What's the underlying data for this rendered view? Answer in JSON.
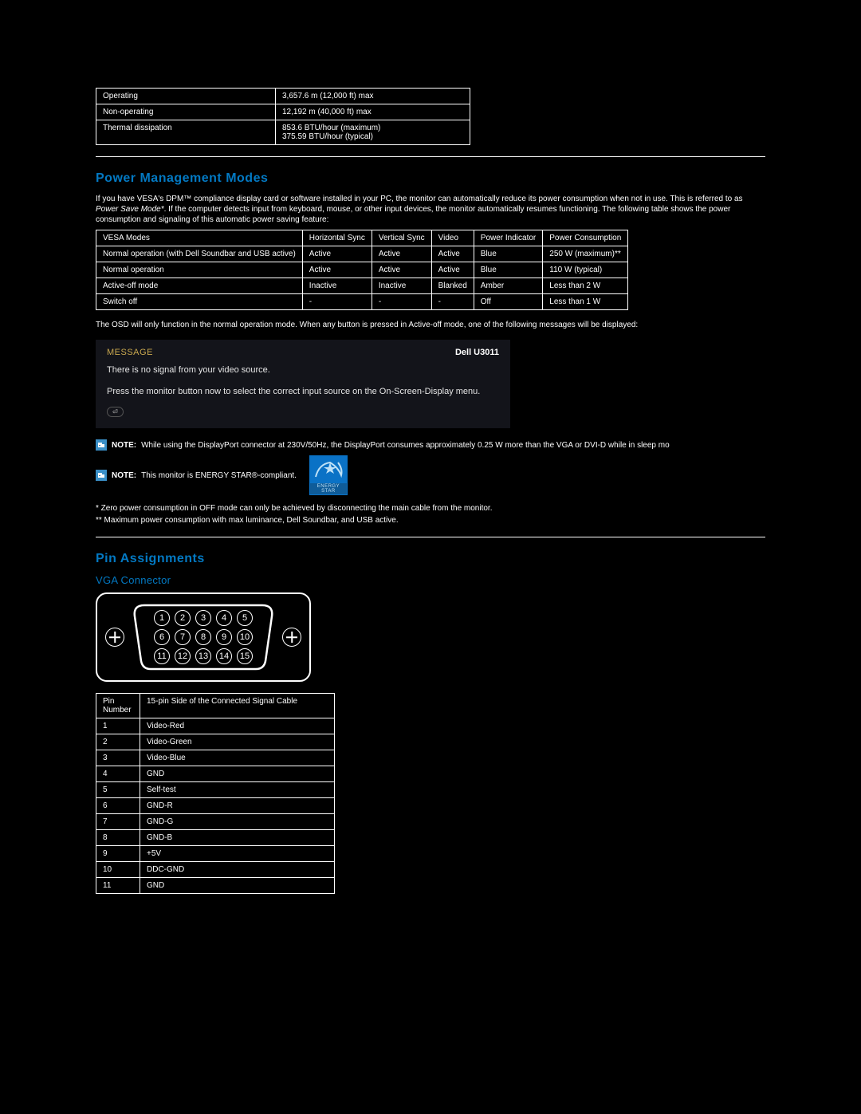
{
  "env_table": {
    "rows": [
      [
        "Operating",
        "3,657.6 m (12,000 ft) max"
      ],
      [
        "Non-operating",
        "12,192 m (40,000 ft) max"
      ],
      [
        "Thermal dissipation",
        "853.6 BTU/hour (maximum)\n375.59 BTU/hour (typical)"
      ]
    ]
  },
  "sections": {
    "power_mgmt": "Power Management Modes",
    "pin_assign": "Pin Assignments",
    "vga": "VGA Connector"
  },
  "power_mgmt_intro_parts": {
    "p1": "If you have VESA's DPM™ compliance display card or software installed in your PC, the monitor can automatically reduce its power consumption when not in use. This is referred to as ",
    "p2": "Power Save Mode*",
    "p3": ". If the computer detects input from keyboard, mouse, or other input devices, the monitor automatically resumes functioning. The following table shows the power consumption and signaling of this automatic power saving feature:"
  },
  "vesa_table": {
    "header": [
      "VESA Modes",
      "Horizontal Sync",
      "Vertical Sync",
      "Video",
      "Power Indicator",
      "Power Consumption"
    ],
    "rows": [
      [
        "Normal operation (with Dell Soundbar and USB active)",
        "Active",
        "Active",
        "Active",
        "Blue",
        "250 W (maximum)**"
      ],
      [
        "Normal operation",
        "Active",
        "Active",
        "Active",
        "Blue",
        "110 W (typical)"
      ],
      [
        "Active-off mode",
        "Inactive",
        "Inactive",
        "Blanked",
        "Amber",
        "Less than 2 W"
      ],
      [
        "Switch off",
        "-",
        "-",
        "-",
        "Off",
        "Less than 1 W"
      ]
    ]
  },
  "osd_note_text": "The OSD will only function in the normal operation mode. When any button is pressed in Active-off mode, one of the following messages will be displayed:",
  "osd": {
    "label": "MESSAGE",
    "model": "Dell U3011",
    "line1": "There is no signal from your video source.",
    "line2": "Press the monitor button now to select the correct input source on the On-Screen-Display menu.",
    "ok": "⏎"
  },
  "notes": {
    "note1_label": "NOTE:",
    "note1_text": "While using the DisplayPort connector at 230V/50Hz, the DisplayPort consumes approximately 0.25 W more than the VGA or DVI-D while in sleep mo",
    "note2_label": "NOTE:",
    "note2_text": "This monitor is ENERGY STAR®-compliant."
  },
  "energy_star": {
    "top": "energy",
    "bottom": "ENERGY STAR"
  },
  "footnotes": {
    "f1": "*   Zero power consumption in OFF mode can only be achieved by disconnecting the main cable from the monitor.",
    "f2": "** Maximum power consumption with max luminance, Dell Soundbar, and USB active."
  },
  "vga_pins": {
    "row1": [
      "1",
      "2",
      "3",
      "4",
      "5"
    ],
    "row2": [
      "6",
      "7",
      "8",
      "9",
      "10"
    ],
    "row3": [
      "11",
      "12",
      "13",
      "14",
      "15"
    ]
  },
  "pin_table": {
    "header": [
      "Pin Number",
      "15-pin Side of the Connected Signal Cable"
    ],
    "rows": [
      [
        "1",
        "Video-Red"
      ],
      [
        "2",
        "Video-Green"
      ],
      [
        "3",
        "Video-Blue"
      ],
      [
        "4",
        "GND"
      ],
      [
        "5",
        "Self-test"
      ],
      [
        "6",
        "GND-R"
      ],
      [
        "7",
        "GND-G"
      ],
      [
        "8",
        "GND-B"
      ],
      [
        "9",
        "+5V"
      ],
      [
        "10",
        "DDC-GND"
      ],
      [
        "11",
        "GND"
      ]
    ]
  },
  "colors": {
    "heading": "#0379c3",
    "note_icon_bg": "#3a8fc7",
    "osd_bg": "#13141a",
    "osd_label": "#c9a84f",
    "energy_star_bg": "#0a72c6"
  }
}
